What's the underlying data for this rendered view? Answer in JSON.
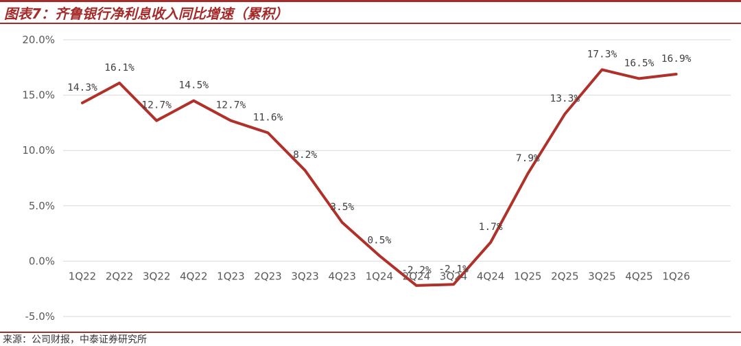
{
  "header": {
    "title": "图表7：齐鲁银行净利息收入同比增速（累积）"
  },
  "footer": {
    "source": "来源：公司财报，中泰证券研究所"
  },
  "colors": {
    "accent": "#a52a2a",
    "line": "#b0302a",
    "grid": "#d9d9d9",
    "text": "#595959"
  },
  "chart_data": {
    "type": "line",
    "title": "图表7：齐鲁银行净利息收入同比增速（累积）",
    "xlabel": "",
    "ylabel": "",
    "categories": [
      "1Q22",
      "2Q22",
      "3Q22",
      "4Q22",
      "1Q23",
      "2Q23",
      "3Q23",
      "4Q23",
      "1Q24",
      "2Q24",
      "3Q24",
      "4Q24",
      "1Q25",
      "2Q25",
      "3Q25",
      "4Q25",
      "1Q26"
    ],
    "values": [
      14.3,
      16.1,
      12.7,
      14.5,
      12.7,
      11.6,
      8.2,
      3.5,
      0.5,
      -2.2,
      -2.1,
      1.7,
      7.9,
      13.3,
      17.3,
      16.5,
      16.9
    ],
    "data_labels": [
      "14.3%",
      "16.1%",
      "12.7%",
      "14.5%",
      "12.7%",
      "11.6%",
      "8.2%",
      "3.5%",
      "0.5%",
      "-2.2%",
      "-2.1%",
      "1.7%",
      "7.9%",
      "13.3%",
      "17.3%",
      "16.5%",
      "16.9%"
    ],
    "ylim": [
      -5,
      20
    ],
    "yticks": [
      20,
      15,
      10,
      5,
      0,
      -5
    ],
    "ytick_labels": [
      "20.0%",
      "15.0%",
      "10.0%",
      "5.0%",
      "0.0%",
      "-5.0%"
    ],
    "grid": true,
    "legend": "none"
  }
}
